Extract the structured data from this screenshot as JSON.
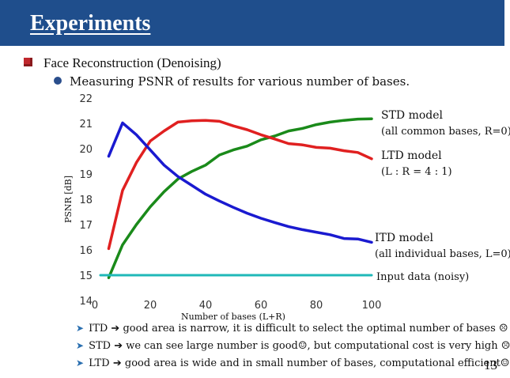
{
  "slide": {
    "title": "Experiments",
    "bullet1": "Face Reconstruction (Denoising)",
    "bullet2": "Measuring PSNR of results for various number of bases.",
    "notes": [
      "ITD ➔ good area is narrow, it is difficult to select the optimal number of bases ☹",
      "STD ➔ we can see large number is good☺, but computational cost is very high ☹",
      "LTD ➔ good area is wide and in small number of bases, computational efficient☺"
    ],
    "page_number": "13",
    "colors": {
      "title_bar": "#1f4e8c",
      "bullet_square": "#c0282d",
      "bullet_dot": "#2a4e8c",
      "arrow": "#2a6fb0"
    },
    "icons": {
      "bullet1": "red-square-bullet",
      "bullet2": "blue-dot-bullet",
      "notes": "right-arrow-icon"
    }
  },
  "chart_data": {
    "type": "line",
    "xlabel": "Number of bases (L+R)",
    "ylabel": "PSNR [dB]",
    "xlim": [
      0,
      100
    ],
    "ylim": [
      14,
      22
    ],
    "x_ticks": [
      0,
      20,
      40,
      60,
      80,
      100
    ],
    "y_ticks": [
      14,
      15,
      16,
      17,
      18,
      19,
      20,
      21,
      22
    ],
    "grid": false,
    "series": [
      {
        "label": [
          "STD model",
          "(all common bases, R=0)"
        ],
        "color": "#1a8a1a",
        "x": [
          5,
          10,
          15,
          20,
          25,
          30,
          35,
          40,
          45,
          50,
          55,
          60,
          65,
          70,
          75,
          80,
          85,
          90,
          95,
          100
        ],
        "y": [
          14.9,
          16.2,
          17.0,
          17.7,
          18.3,
          18.8,
          19.1,
          19.35,
          19.75,
          19.95,
          20.1,
          20.35,
          20.5,
          20.7,
          20.8,
          20.95,
          21.05,
          21.12,
          21.17,
          21.18
        ]
      },
      {
        "label": [
          "LTD model",
          "(L : R = 4 : 1)"
        ],
        "color": "#e02020",
        "x": [
          5,
          10,
          15,
          20,
          25,
          30,
          35,
          40,
          45,
          50,
          55,
          60,
          65,
          70,
          75,
          80,
          85,
          90,
          95,
          100
        ],
        "y": [
          16.05,
          18.35,
          19.45,
          20.3,
          20.7,
          21.05,
          21.1,
          21.12,
          21.08,
          20.9,
          20.75,
          20.55,
          20.38,
          20.2,
          20.15,
          20.05,
          20.02,
          19.92,
          19.85,
          19.6
        ]
      },
      {
        "label": [
          "ITD model",
          "(all individual bases, L=0)"
        ],
        "color": "#1a1ad0",
        "x": [
          5,
          10,
          15,
          20,
          25,
          30,
          35,
          40,
          45,
          50,
          55,
          60,
          65,
          70,
          75,
          80,
          85,
          90,
          95,
          100
        ],
        "y": [
          19.7,
          21.02,
          20.55,
          19.95,
          19.35,
          18.9,
          18.55,
          18.2,
          17.93,
          17.68,
          17.45,
          17.25,
          17.08,
          16.92,
          16.8,
          16.7,
          16.6,
          16.45,
          16.43,
          16.3
        ]
      },
      {
        "label": [
          "Input data (noisy)"
        ],
        "color": "#20b8b8",
        "x": [
          2,
          100
        ],
        "y": [
          15.0,
          15.0
        ]
      }
    ]
  }
}
